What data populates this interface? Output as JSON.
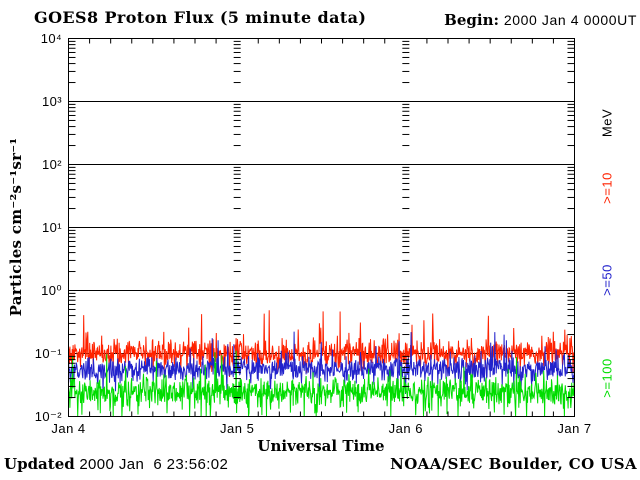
{
  "header": {
    "title": "GOES8 Proton Flux (5 minute data)",
    "begin_label": "Begin:",
    "begin_value": "2000 Jan 4 0000UT"
  },
  "footer": {
    "updated_label": "Updated",
    "updated_value": " 2000 Jan  6 23:56:02",
    "credit": "NOAA/SEC Boulder, CO USA"
  },
  "chart_data": {
    "type": "line",
    "title": "GOES8 Proton Flux (5 minute data)",
    "subtitle": "Begin: 2000 Jan 4 0000UT",
    "xlabel": "Universal Time",
    "ylabel": "Particles cm⁻²s⁻¹sr⁻¹",
    "x_ticks": [
      "Jan 4",
      "Jan 5",
      "Jan 6",
      "Jan 7"
    ],
    "y_ticks": [
      "10⁴",
      "10³",
      "10²",
      "10¹",
      "10⁰",
      "10⁻¹",
      "10⁻²"
    ],
    "y_log10_range": [
      -2,
      4
    ],
    "x_range_days": 3,
    "sample_interval_minutes": 5,
    "grid": {
      "horizontal": "solid black line at each decade",
      "vertical": "log-minor dash columns at day boundaries",
      "minor_ticks": "3-hour ticks top and bottom edges"
    },
    "legend_position": "right",
    "units_label": "MeV",
    "axis_color": "#000000",
    "series": [
      {
        "name": ">=10",
        "unit": "MeV",
        "color": "#ff2200",
        "approx_log10_mean": -1.0,
        "approx_log10_range": [
          -1.3,
          -0.4
        ],
        "noise": {
          "base": -1.0,
          "spread": 0.38,
          "up_p": 0.05,
          "up_amp": 0.32,
          "down_p": 0.03,
          "down_amp": 0.2,
          "clip_min": -2
        }
      },
      {
        "name": ">=50",
        "unit": "MeV",
        "color": "#2222cc",
        "approx_log10_mean": -1.25,
        "approx_log10_range": [
          -1.65,
          -0.85
        ],
        "noise": {
          "base": -1.25,
          "spread": 0.33,
          "up_p": 0.04,
          "up_amp": 0.28,
          "down_p": 0.06,
          "down_amp": 0.32,
          "clip_min": -2
        }
      },
      {
        "name": ">=100",
        "unit": "MeV",
        "color": "#00dd00",
        "approx_log10_mean": -1.6,
        "approx_log10_range": [
          -2.0,
          -1.1
        ],
        "noise": {
          "base": -1.6,
          "spread": 0.4,
          "up_p": 0.03,
          "up_amp": 0.27,
          "down_p": 0.08,
          "down_amp": 0.5,
          "clip_min": -2
        }
      }
    ],
    "render": {
      "seed": 20000104,
      "points": 1100
    }
  }
}
